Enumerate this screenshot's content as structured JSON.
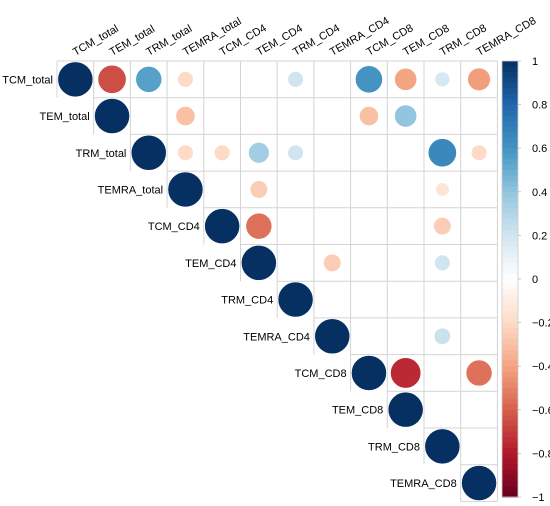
{
  "chart_data": {
    "type": "heatmap",
    "subtype": "correlation-upper-triangle-circles",
    "variables": [
      "TCM_total",
      "TEM_total",
      "TRM_total",
      "TEMRA_total",
      "TCM_CD4",
      "TEM_CD4",
      "TRM_CD4",
      "TEMRA_CD4",
      "TCM_CD8",
      "TEM_CD8",
      "TRM_CD8",
      "TEMRA_CD8"
    ],
    "color_scale": {
      "min": -1,
      "max": 1,
      "ticks": [
        "1",
        "0.8",
        "0.6",
        "0.4",
        "0.2",
        "0",
        "−0.2",
        "−0.4",
        "−0.6",
        "−0.8",
        "−1"
      ],
      "colors": [
        "#67001F",
        "#B2182B",
        "#D6604D",
        "#F4A582",
        "#FDDBC7",
        "#FFFFFF",
        "#D1E5F0",
        "#92C5DE",
        "#4393C3",
        "#2166AC",
        "#053061"
      ]
    },
    "matrix": [
      [
        1,
        -0.65,
        0.55,
        -0.2,
        0,
        0,
        0.2,
        0,
        0.6,
        -0.4,
        0.18,
        -0.42
      ],
      [
        0,
        1,
        0,
        -0.3,
        0,
        0,
        0,
        0,
        -0.3,
        0.4,
        0,
        0
      ],
      [
        0,
        0,
        1,
        -0.2,
        -0.2,
        0.35,
        0.2,
        0,
        0,
        0,
        0.65,
        -0.2
      ],
      [
        0,
        0,
        0,
        1,
        0,
        -0.25,
        0,
        0,
        0,
        0,
        -0.15,
        0
      ],
      [
        0,
        0,
        0,
        0,
        1,
        -0.55,
        0,
        0,
        0,
        0,
        -0.25,
        0
      ],
      [
        0,
        0,
        0,
        0,
        0,
        1,
        0,
        -0.25,
        0,
        0,
        0.2,
        0
      ],
      [
        0,
        0,
        0,
        0,
        0,
        0,
        1,
        0,
        0,
        0,
        0,
        0
      ],
      [
        0,
        0,
        0,
        0,
        0,
        0,
        0,
        1,
        0,
        0,
        0.22,
        0
      ],
      [
        0,
        0,
        0,
        0,
        0,
        0,
        0,
        0,
        1,
        -0.75,
        0,
        -0.55
      ],
      [
        0,
        0,
        0,
        0,
        0,
        0,
        0,
        0,
        0,
        1,
        0,
        0
      ],
      [
        0,
        0,
        0,
        0,
        0,
        0,
        0,
        0,
        0,
        0,
        1,
        0
      ],
      [
        0,
        0,
        0,
        0,
        0,
        0,
        0,
        0,
        0,
        0,
        0,
        1
      ]
    ]
  }
}
